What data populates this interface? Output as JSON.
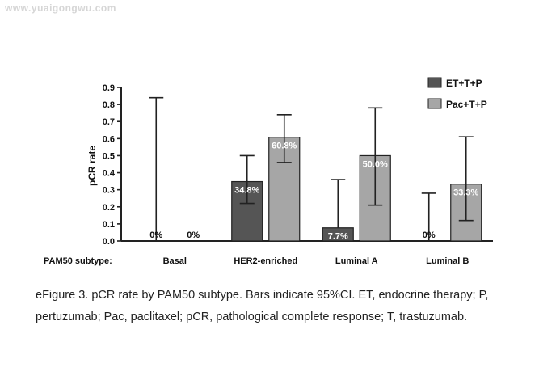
{
  "watermark": "www.yuaigongwu.com",
  "caption": "eFigure 3. pCR rate by PAM50 subtype. Bars indicate 95%CI. ET, endocrine therapy; P, pertuzumab; Pac, paclitaxel; pCR, pathological complete response; T, trastuzumab.",
  "chart_data": {
    "type": "bar",
    "ylabel": "pCR rate",
    "xlabel": "PAM50 subtype:",
    "ylim": [
      0,
      0.9
    ],
    "yticks": [
      "0.0",
      "0.1",
      "0.2",
      "0.3",
      "0.4",
      "0.5",
      "0.6",
      "0.7",
      "0.8",
      "0.9"
    ],
    "categories": [
      "Basal",
      "HER2-enriched",
      "Luminal A",
      "Luminal B"
    ],
    "legend_position": "top-right",
    "grid": false,
    "series": [
      {
        "name": "ET+T+P",
        "color": "#555555",
        "values": [
          0,
          0.348,
          0.077,
          0
        ],
        "labels": [
          "0%",
          "34.8%",
          "7.7%",
          "0%"
        ],
        "ci_low": [
          0,
          0.22,
          0,
          0
        ],
        "ci_high": [
          0.84,
          0.5,
          0.36,
          0.28
        ]
      },
      {
        "name": "Pac+T+P",
        "color": "#a6a6a6",
        "values": [
          0,
          0.608,
          0.5,
          0.333
        ],
        "labels": [
          "0%",
          "60.8%",
          "50.0%",
          "33.3%"
        ],
        "ci_low": [
          0,
          0.46,
          0.21,
          0.12
        ],
        "ci_high": [
          0,
          0.74,
          0.78,
          0.61
        ]
      }
    ]
  }
}
